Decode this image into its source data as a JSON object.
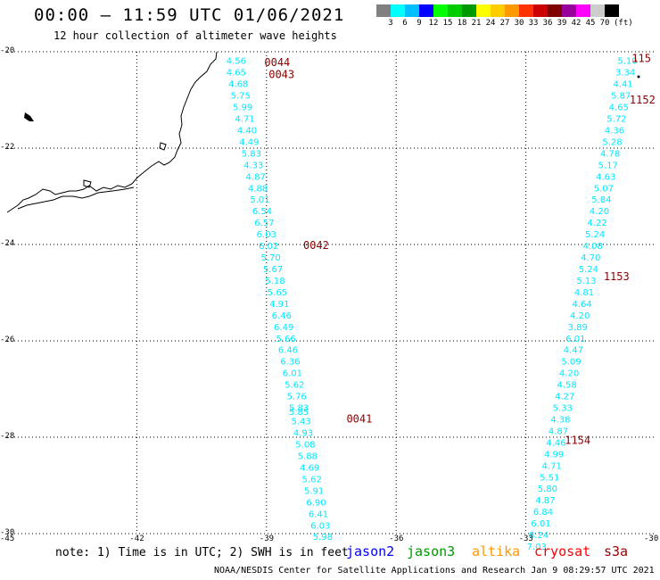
{
  "header": {
    "title": "00:00 – 11:59 UTC 01/06/2021",
    "subtitle": "12 hour collection of altimeter wave heights"
  },
  "colorbar": {
    "colors": [
      "#808080",
      "#00ffff",
      "#00bfff",
      "#0000ff",
      "#00ff00",
      "#00cc00",
      "#009900",
      "#ffff00",
      "#ffcc00",
      "#ff9900",
      "#ff3300",
      "#cc0000",
      "#800000",
      "#990099",
      "#ff00ff",
      "#cccccc",
      "#000000"
    ],
    "labels": [
      "3",
      "6",
      "9",
      "12",
      "15",
      "18",
      "21",
      "24",
      "27",
      "30",
      "33",
      "36",
      "39",
      "42",
      "45",
      "70"
    ],
    "unit": "(ft)"
  },
  "map": {
    "lon_range": [
      -45,
      -30
    ],
    "lat_range": [
      -30,
      -20
    ],
    "y_ticks": [
      "-20",
      "-22",
      "-24",
      "-26",
      "-28",
      "-30"
    ],
    "x_ticks": [
      "-45",
      "-42",
      "-39",
      "-36",
      "-33",
      "-30"
    ],
    "track_color": "#00e8ff",
    "time_label_color": "#8b0000",
    "track_a": [
      {
        "lon": -39.7,
        "lat": -20.18,
        "v": "4.56"
      },
      {
        "lon": -39.7,
        "lat": -20.42,
        "v": "4.65"
      },
      {
        "lon": -39.65,
        "lat": -20.66,
        "v": "4.68"
      },
      {
        "lon": -39.6,
        "lat": -20.9,
        "v": "5.75"
      },
      {
        "lon": -39.55,
        "lat": -21.14,
        "v": "5.99"
      },
      {
        "lon": -39.5,
        "lat": -21.38,
        "v": "4.71"
      },
      {
        "lon": -39.45,
        "lat": -21.62,
        "v": "4.40"
      },
      {
        "lon": -39.4,
        "lat": -21.86,
        "v": "4.49"
      },
      {
        "lon": -39.35,
        "lat": -22.1,
        "v": "5.83"
      },
      {
        "lon": -39.3,
        "lat": -22.34,
        "v": "4.33"
      },
      {
        "lon": -39.25,
        "lat": -22.58,
        "v": "4.87"
      },
      {
        "lon": -39.2,
        "lat": -22.82,
        "v": "4.88"
      },
      {
        "lon": -39.15,
        "lat": -23.06,
        "v": "5.01"
      },
      {
        "lon": -39.1,
        "lat": -23.3,
        "v": "6.54"
      },
      {
        "lon": -39.05,
        "lat": -23.54,
        "v": "6.57"
      },
      {
        "lon": -39.0,
        "lat": -23.78,
        "v": "6.03"
      },
      {
        "lon": -38.95,
        "lat": -24.02,
        "v": "6.02"
      },
      {
        "lon": -38.9,
        "lat": -24.26,
        "v": "5.70"
      },
      {
        "lon": -38.85,
        "lat": -24.5,
        "v": "5.67"
      },
      {
        "lon": -38.8,
        "lat": -24.74,
        "v": "5.18"
      },
      {
        "lon": -38.75,
        "lat": -24.98,
        "v": "5.65"
      },
      {
        "lon": -38.7,
        "lat": -25.22,
        "v": "4.91"
      },
      {
        "lon": -38.65,
        "lat": -25.46,
        "v": "6.46"
      },
      {
        "lon": -38.6,
        "lat": -25.7,
        "v": "6.49"
      },
      {
        "lon": -38.55,
        "lat": -25.94,
        "v": "5.66"
      },
      {
        "lon": -38.5,
        "lat": -26.18,
        "v": "6.46"
      },
      {
        "lon": -38.45,
        "lat": -26.42,
        "v": "6.36"
      },
      {
        "lon": -38.4,
        "lat": -26.66,
        "v": "6.01"
      },
      {
        "lon": -38.35,
        "lat": -26.9,
        "v": "5.62"
      },
      {
        "lon": -38.3,
        "lat": -27.14,
        "v": "5.76"
      },
      {
        "lon": -38.25,
        "lat": -27.38,
        "v": "5.83"
      },
      {
        "lon": -38.25,
        "lat": -27.46,
        "v": "5.85"
      },
      {
        "lon": -38.2,
        "lat": -27.66,
        "v": "5.43"
      },
      {
        "lon": -38.15,
        "lat": -27.9,
        "v": "4.93"
      },
      {
        "lon": -38.1,
        "lat": -28.14,
        "v": "5.08"
      },
      {
        "lon": -38.05,
        "lat": -28.38,
        "v": "5.88"
      },
      {
        "lon": -38.0,
        "lat": -28.62,
        "v": "4.69"
      },
      {
        "lon": -37.95,
        "lat": -28.86,
        "v": "5.62"
      },
      {
        "lon": -37.9,
        "lat": -29.1,
        "v": "5.91"
      },
      {
        "lon": -37.85,
        "lat": -29.34,
        "v": "6.90"
      },
      {
        "lon": -37.8,
        "lat": -29.58,
        "v": "6.41"
      },
      {
        "lon": -37.75,
        "lat": -29.82,
        "v": "6.03"
      },
      {
        "lon": -37.7,
        "lat": -30.06,
        "v": "5.98"
      }
    ],
    "track_b": [
      {
        "lon": -30.65,
        "lat": -20.18,
        "v": "5.10"
      },
      {
        "lon": -30.7,
        "lat": -20.42,
        "v": "3.34"
      },
      {
        "lon": -30.75,
        "lat": -20.66,
        "v": "4.41"
      },
      {
        "lon": -30.8,
        "lat": -20.9,
        "v": "5.87"
      },
      {
        "lon": -30.85,
        "lat": -21.14,
        "v": "4.65"
      },
      {
        "lon": -30.9,
        "lat": -21.38,
        "v": "5.72"
      },
      {
        "lon": -30.95,
        "lat": -21.62,
        "v": "4.36"
      },
      {
        "lon": -31.0,
        "lat": -21.86,
        "v": "5.28"
      },
      {
        "lon": -31.05,
        "lat": -22.1,
        "v": "4.78"
      },
      {
        "lon": -31.1,
        "lat": -22.34,
        "v": "5.17"
      },
      {
        "lon": -31.15,
        "lat": -22.58,
        "v": "4.63"
      },
      {
        "lon": -31.2,
        "lat": -22.82,
        "v": "5.07"
      },
      {
        "lon": -31.25,
        "lat": -23.06,
        "v": "5.84"
      },
      {
        "lon": -31.3,
        "lat": -23.3,
        "v": "4.20"
      },
      {
        "lon": -31.35,
        "lat": -23.54,
        "v": "4.22"
      },
      {
        "lon": -31.4,
        "lat": -23.78,
        "v": "5.24"
      },
      {
        "lon": -31.45,
        "lat": -24.02,
        "v": "4.08"
      },
      {
        "lon": -31.5,
        "lat": -24.26,
        "v": "4.70"
      },
      {
        "lon": -31.55,
        "lat": -24.5,
        "v": "5.24"
      },
      {
        "lon": -31.6,
        "lat": -24.74,
        "v": "5.13"
      },
      {
        "lon": -31.65,
        "lat": -24.98,
        "v": "4.81"
      },
      {
        "lon": -31.7,
        "lat": -25.22,
        "v": "4.64"
      },
      {
        "lon": -31.75,
        "lat": -25.46,
        "v": "4.20"
      },
      {
        "lon": -31.8,
        "lat": -25.7,
        "v": "3.89"
      },
      {
        "lon": -31.85,
        "lat": -25.94,
        "v": "6.01"
      },
      {
        "lon": -31.9,
        "lat": -26.18,
        "v": "4.47"
      },
      {
        "lon": -31.95,
        "lat": -26.42,
        "v": "5.09"
      },
      {
        "lon": -32.0,
        "lat": -26.66,
        "v": "4.20"
      },
      {
        "lon": -32.05,
        "lat": -26.9,
        "v": "4.58"
      },
      {
        "lon": -32.1,
        "lat": -27.14,
        "v": "4.27"
      },
      {
        "lon": -32.15,
        "lat": -27.38,
        "v": "5.33"
      },
      {
        "lon": -32.2,
        "lat": -27.62,
        "v": "4.38"
      },
      {
        "lon": -32.25,
        "lat": -27.86,
        "v": "4.87"
      },
      {
        "lon": -32.3,
        "lat": -28.1,
        "v": "4.46"
      },
      {
        "lon": -32.35,
        "lat": -28.34,
        "v": "4.99"
      },
      {
        "lon": -32.4,
        "lat": -28.58,
        "v": "4.71"
      },
      {
        "lon": -32.45,
        "lat": -28.82,
        "v": "5.51"
      },
      {
        "lon": -32.5,
        "lat": -29.06,
        "v": "5.80"
      },
      {
        "lon": -32.55,
        "lat": -29.3,
        "v": "4.87"
      },
      {
        "lon": -32.6,
        "lat": -29.54,
        "v": "6.84"
      },
      {
        "lon": -32.65,
        "lat": -29.78,
        "v": "6.01"
      },
      {
        "lon": -32.7,
        "lat": -30.02,
        "v": "8.24"
      },
      {
        "lon": -32.75,
        "lat": -30.26,
        "v": "7.03"
      }
    ],
    "time_labels": [
      {
        "text": "0044",
        "lon": -39.05,
        "lat": -20.2
      },
      {
        "text": "0043",
        "lon": -38.95,
        "lat": -20.45
      },
      {
        "text": "0042",
        "lon": -38.15,
        "lat": -24.0
      },
      {
        "text": "0041",
        "lon": -37.15,
        "lat": -27.6
      },
      {
        "text": "115",
        "lon": -30.55,
        "lat": -20.12
      },
      {
        "text": "1152",
        "lon": -30.6,
        "lat": -20.98
      },
      {
        "text": "1153",
        "lon": -31.2,
        "lat": -24.65
      },
      {
        "text": "1154",
        "lon": -32.1,
        "lat": -28.05
      }
    ]
  },
  "footer": {
    "note": "note: 1) Time is in UTC; 2) SWH is in feet",
    "satellites": [
      {
        "name": "jason2",
        "color": "#0000ff"
      },
      {
        "name": "jason3",
        "color": "#009900"
      },
      {
        "name": "altika",
        "color": "#ff9900"
      },
      {
        "name": "cryosat",
        "color": "#ff0000"
      },
      {
        "name": "s3a",
        "color": "#990000"
      }
    ],
    "credit": "NOAA/NESDIS Center for Satellite Applications and Research    Jan  9 08:29:57 UTC 2021"
  }
}
